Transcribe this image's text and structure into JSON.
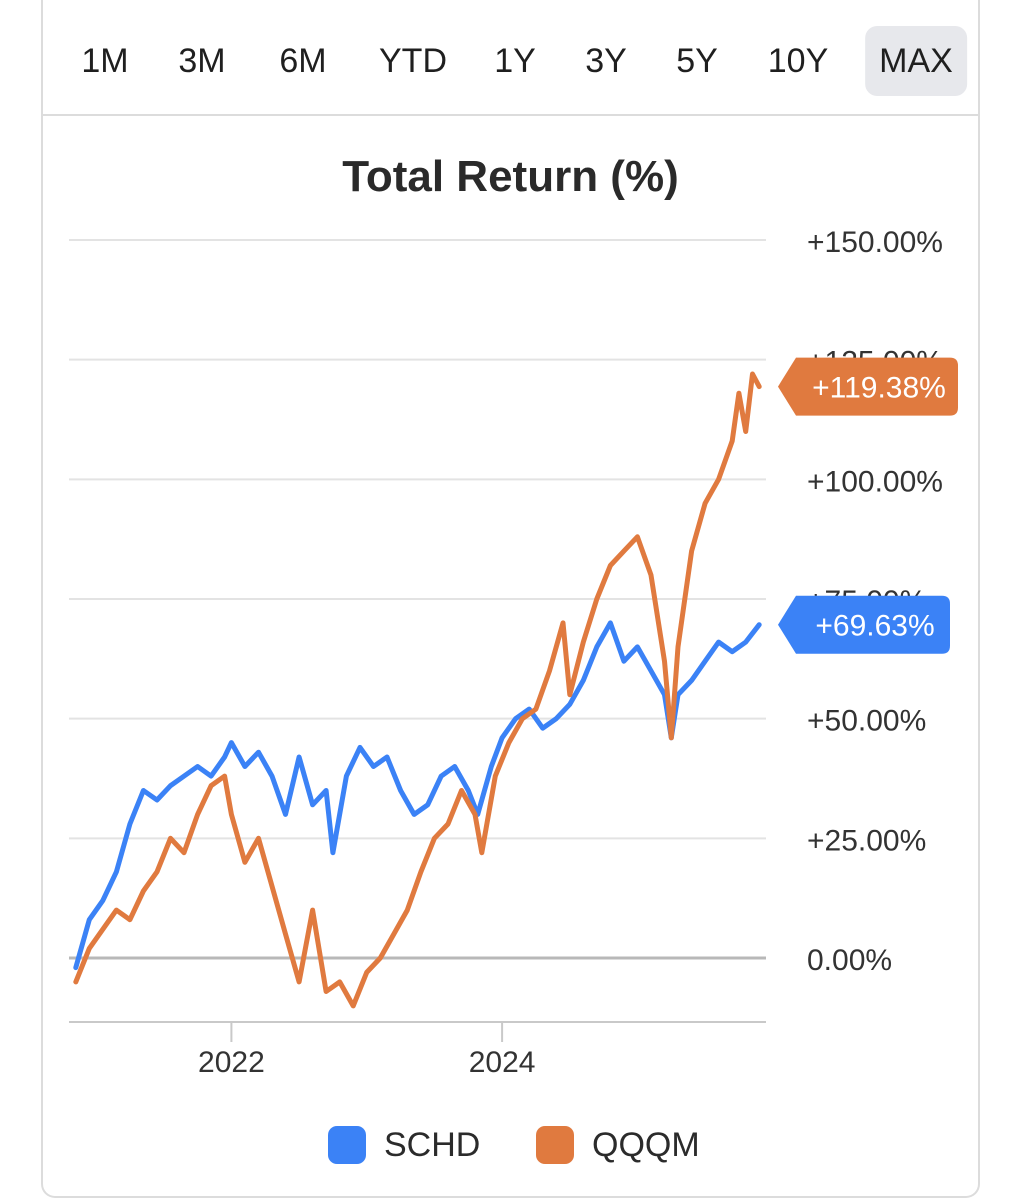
{
  "range_buttons": [
    {
      "label": "1M",
      "active": false
    },
    {
      "label": "3M",
      "active": false
    },
    {
      "label": "6M",
      "active": false
    },
    {
      "label": "YTD",
      "active": false
    },
    {
      "label": "1Y",
      "active": false
    },
    {
      "label": "3Y",
      "active": false
    },
    {
      "label": "5Y",
      "active": false
    },
    {
      "label": "10Y",
      "active": false
    },
    {
      "label": "MAX",
      "active": true
    }
  ],
  "chart_data": {
    "type": "line",
    "title": "Total Return (%)",
    "xlabel": "",
    "ylabel": "",
    "xlim": [
      2020.8,
      2025.95
    ],
    "ylim": [
      -13.5,
      150
    ],
    "y_ticks": [
      {
        "value": 150,
        "label": "+150.00%"
      },
      {
        "value": 125,
        "label": "+125.00%"
      },
      {
        "value": 100,
        "label": "+100.00%"
      },
      {
        "value": 75,
        "label": "+75.00%"
      },
      {
        "value": 50,
        "label": "+50.00%"
      },
      {
        "value": 25,
        "label": "+25.00%"
      },
      {
        "value": 0,
        "label": "0.00%"
      }
    ],
    "x_ticks": [
      {
        "value": 2022,
        "label": "2022"
      },
      {
        "value": 2024,
        "label": "2024"
      }
    ],
    "grid": true,
    "legend": "bottom",
    "series": [
      {
        "name": "SCHD",
        "color": "#3b82f6",
        "end_label": "+69.63%",
        "x": [
          2020.85,
          2020.95,
          2021.05,
          2021.15,
          2021.25,
          2021.35,
          2021.45,
          2021.55,
          2021.65,
          2021.75,
          2021.85,
          2021.95,
          2022.0,
          2022.1,
          2022.2,
          2022.3,
          2022.4,
          2022.5,
          2022.6,
          2022.7,
          2022.75,
          2022.85,
          2022.95,
          2023.05,
          2023.15,
          2023.25,
          2023.35,
          2023.45,
          2023.55,
          2023.65,
          2023.75,
          2023.82,
          2023.92,
          2024.0,
          2024.1,
          2024.2,
          2024.3,
          2024.4,
          2024.5,
          2024.6,
          2024.7,
          2024.8,
          2024.9,
          2025.0,
          2025.1,
          2025.2,
          2025.25,
          2025.3,
          2025.4,
          2025.5,
          2025.6,
          2025.7,
          2025.8,
          2025.9
        ],
        "y": [
          -2,
          8,
          12,
          18,
          28,
          35,
          33,
          36,
          38,
          40,
          38,
          42,
          45,
          40,
          43,
          38,
          30,
          42,
          32,
          35,
          22,
          38,
          44,
          40,
          42,
          35,
          30,
          32,
          38,
          40,
          35,
          30,
          40,
          46,
          50,
          52,
          48,
          50,
          53,
          58,
          65,
          70,
          62,
          65,
          60,
          55,
          46,
          55,
          58,
          62,
          66,
          64,
          66,
          69.63
        ]
      },
      {
        "name": "QQQM",
        "color": "#e07a3f",
        "end_label": "+119.38%",
        "x": [
          2020.85,
          2020.95,
          2021.05,
          2021.15,
          2021.25,
          2021.35,
          2021.45,
          2021.55,
          2021.65,
          2021.75,
          2021.85,
          2021.95,
          2022.0,
          2022.1,
          2022.2,
          2022.3,
          2022.4,
          2022.5,
          2022.6,
          2022.7,
          2022.8,
          2022.9,
          2023.0,
          2023.1,
          2023.2,
          2023.3,
          2023.4,
          2023.5,
          2023.6,
          2023.7,
          2023.8,
          2023.85,
          2023.95,
          2024.05,
          2024.15,
          2024.25,
          2024.35,
          2024.45,
          2024.5,
          2024.6,
          2024.7,
          2024.8,
          2024.9,
          2025.0,
          2025.1,
          2025.2,
          2025.25,
          2025.3,
          2025.4,
          2025.5,
          2025.6,
          2025.7,
          2025.75,
          2025.8,
          2025.85,
          2025.9
        ],
        "y": [
          -5,
          2,
          6,
          10,
          8,
          14,
          18,
          25,
          22,
          30,
          36,
          38,
          30,
          20,
          25,
          15,
          5,
          -5,
          10,
          -7,
          -5,
          -10,
          -3,
          0,
          5,
          10,
          18,
          25,
          28,
          35,
          30,
          22,
          38,
          45,
          50,
          52,
          60,
          70,
          55,
          66,
          75,
          82,
          85,
          88,
          80,
          62,
          46,
          65,
          85,
          95,
          100,
          108,
          118,
          110,
          122,
          119.38
        ]
      }
    ]
  }
}
